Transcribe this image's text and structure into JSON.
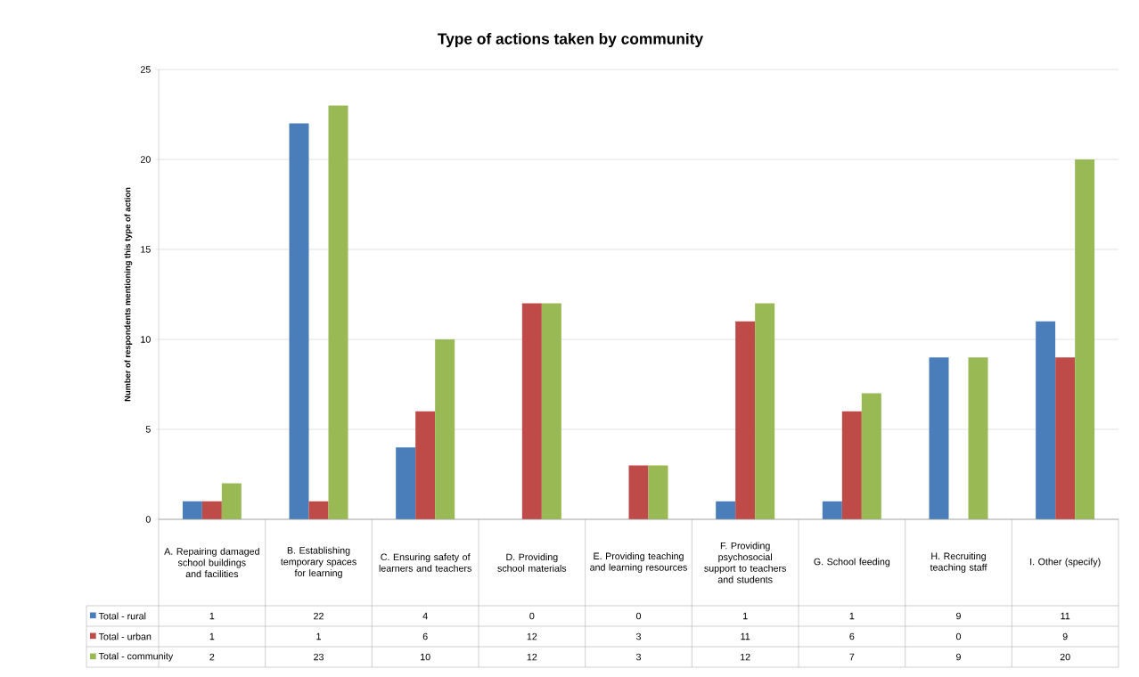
{
  "chart_data": {
    "type": "bar",
    "title": "Type of actions taken by community",
    "ylabel": "Number of respondents mentioning this type of action",
    "categories": [
      "A. Repairing damaged school buildings and facilities",
      "B. Establishing temporary spaces for learning",
      "C. Ensuring safety of learners and teachers",
      "D. Providing school materials",
      "E. Providing teaching and learning resources",
      "F. Providing psychosocial support to teachers and students",
      "G. School feeding",
      "H. Recruiting teaching staff",
      "I. Other (specify)"
    ],
    "series": [
      {
        "name": "Total - rural",
        "color": "#4a7ebb",
        "values": [
          1,
          22,
          4,
          0,
          0,
          1,
          1,
          9,
          11
        ]
      },
      {
        "name": "Total - urban",
        "color": "#be4b48",
        "values": [
          1,
          1,
          6,
          12,
          3,
          11,
          6,
          0,
          9
        ]
      },
      {
        "name": "Total - community",
        "color": "#98b954",
        "values": [
          2,
          23,
          10,
          12,
          3,
          12,
          7,
          9,
          20
        ]
      }
    ],
    "ylim": [
      0,
      25
    ],
    "yticks": [
      0,
      5,
      10,
      15,
      20,
      25
    ],
    "grid": "y",
    "legend": "bottom",
    "data_labels": true
  }
}
